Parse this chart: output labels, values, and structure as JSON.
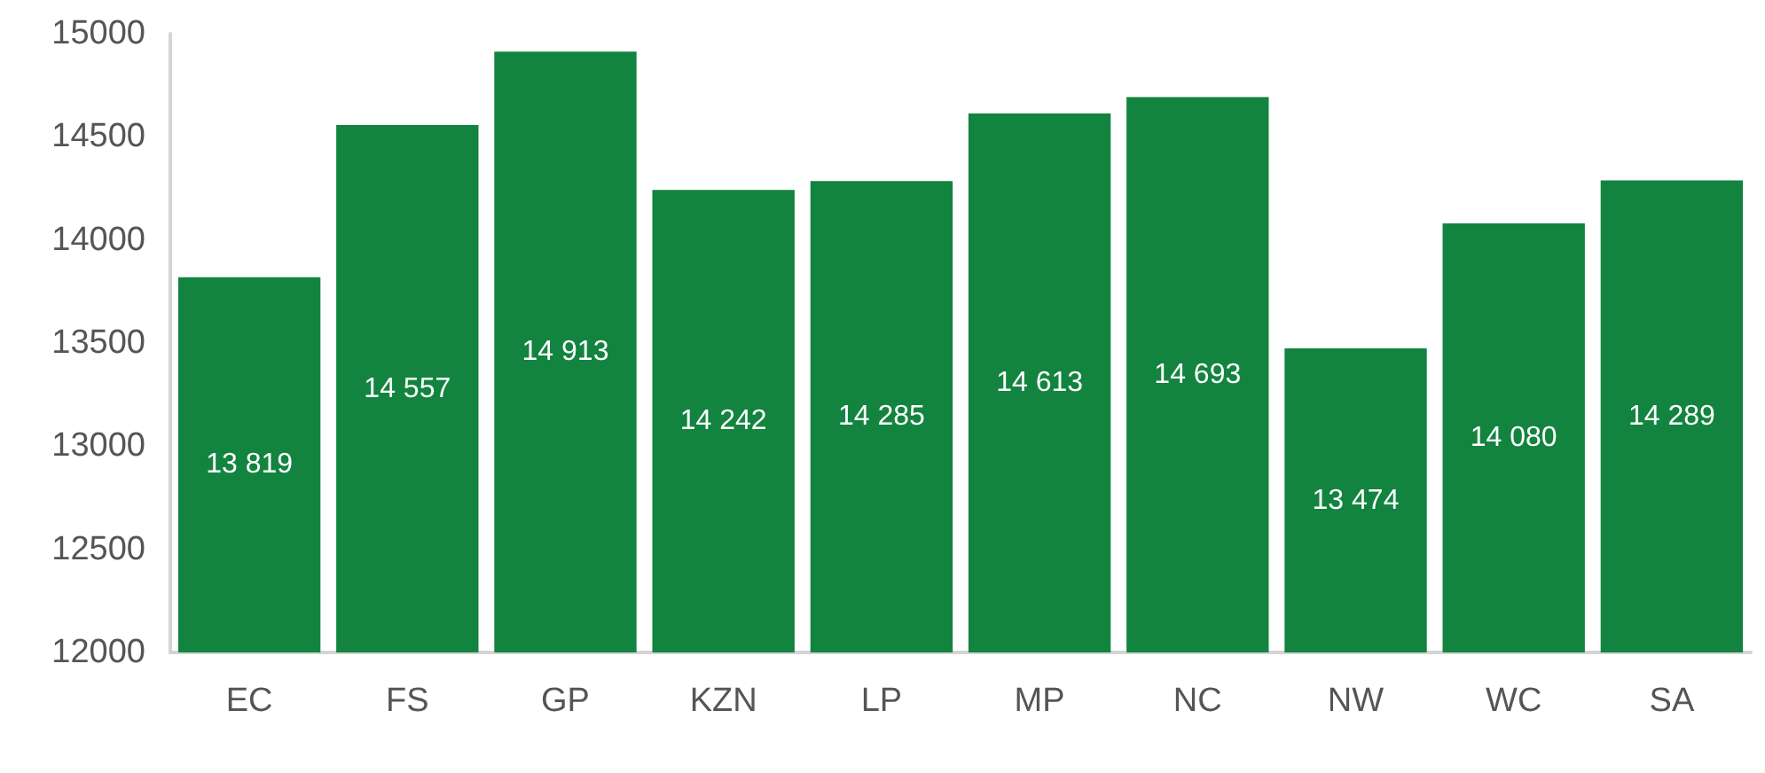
{
  "chart_data": {
    "type": "bar",
    "categories": [
      "EC",
      "FS",
      "GP",
      "KZN",
      "LP",
      "MP",
      "NC",
      "NW",
      "WC",
      "SA"
    ],
    "values": [
      13819,
      14557,
      14913,
      14242,
      14285,
      14613,
      14693,
      13474,
      14080,
      14289
    ],
    "value_labels": [
      "13 819",
      "14 557",
      "14 913",
      "14 242",
      "14 285",
      "14 613",
      "14 693",
      "13 474",
      "14 080",
      "14 289"
    ],
    "color": "#12843f",
    "ylim": [
      12000,
      15000
    ],
    "yticks": [
      12000,
      12500,
      13000,
      13500,
      14000,
      14500,
      15000
    ],
    "grid": false
  }
}
